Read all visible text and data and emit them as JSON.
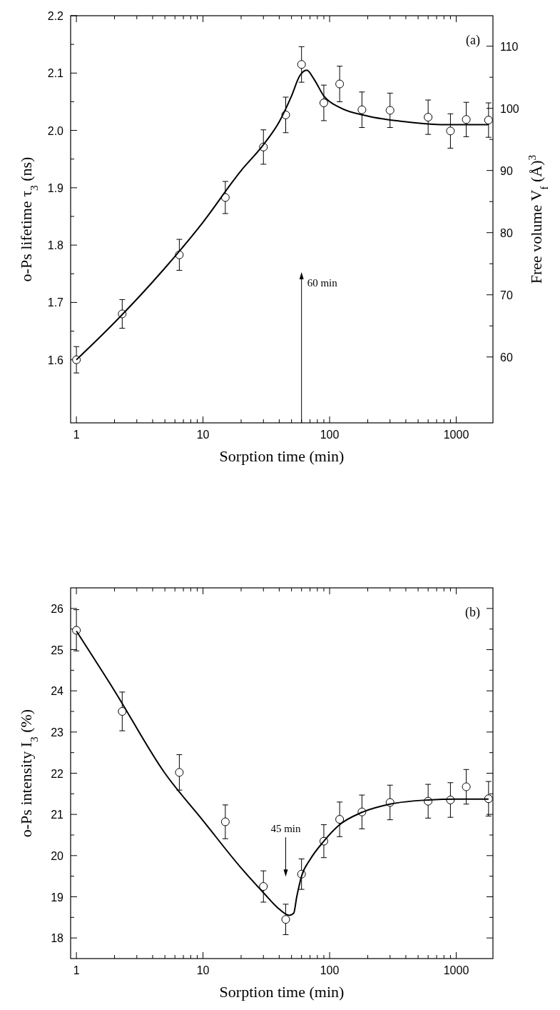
{
  "chart_data": [
    {
      "type": "scatter",
      "xlabel": "Sorption time (min)",
      "ylabel": "o-Ps lifetime τ$_{3}$ (ns)",
      "y2label": "Free volume V$_{f}$ (Å)$^{3}$",
      "log": "x",
      "xlim": [
        0.9,
        1950
      ],
      "ylim": [
        1.49,
        2.2
      ],
      "y2lim": [
        49.4,
        114.9
      ],
      "xticks": [
        1,
        {
          "value": 2,
          "label": null
        },
        {
          "value": 3,
          "label": null
        },
        {
          "value": 4,
          "label": null
        },
        {
          "value": 5,
          "label": null
        },
        {
          "value": 6,
          "label": null
        },
        {
          "value": 7,
          "label": null
        },
        {
          "value": 8,
          "label": null
        },
        {
          "value": 9,
          "label": null
        },
        10,
        {
          "value": 20,
          "label": null
        },
        {
          "value": 30,
          "label": null
        },
        {
          "value": 40,
          "label": null
        },
        {
          "value": 50,
          "label": null
        },
        {
          "value": 60,
          "label": null
        },
        {
          "value": 70,
          "label": null
        },
        {
          "value": 80,
          "label": null
        },
        {
          "value": 90,
          "label": null
        },
        100,
        {
          "value": 200,
          "label": null
        },
        {
          "value": 300,
          "label": null
        },
        {
          "value": 400,
          "label": null
        },
        {
          "value": 500,
          "label": null
        },
        {
          "value": 600,
          "label": null
        },
        {
          "value": 700,
          "label": null
        },
        {
          "value": 800,
          "label": null
        },
        {
          "value": 900,
          "label": null
        },
        1000
      ],
      "yticks": [
        {
          "value": 1.6,
          "label": "1.6"
        },
        {
          "value": 1.65,
          "label": null
        },
        {
          "value": 1.7,
          "label": "1.7"
        },
        {
          "value": 1.75,
          "label": null
        },
        {
          "value": 1.8,
          "label": "1.8"
        },
        {
          "value": 1.85,
          "label": null
        },
        {
          "value": 1.9,
          "label": "1.9"
        },
        {
          "value": 1.95,
          "label": null
        },
        {
          "value": 2.0,
          "label": "2.0"
        },
        {
          "value": 2.05,
          "label": null
        },
        {
          "value": 2.1,
          "label": "2.1"
        },
        {
          "value": 2.15,
          "label": null
        },
        {
          "value": 2.2,
          "label": "2.2"
        }
      ],
      "y2ticks": [
        60,
        {
          "value": 65,
          "label": null
        },
        70,
        {
          "value": 75,
          "label": null
        },
        80,
        {
          "value": 85,
          "label": null
        },
        90,
        {
          "value": 95,
          "label": null
        },
        100,
        {
          "value": 105,
          "label": null
        },
        110
      ],
      "annotations": [
        "(a)"
      ],
      "ref_lines": [
        {
          "axis": "x",
          "value": 60,
          "label": "60 min"
        }
      ],
      "series": [
        {
          "type": "scatter",
          "marker": "circle",
          "color": "#000000",
          "x": [
            1,
            2.3,
            6.5,
            15,
            30,
            45,
            60,
            90,
            120,
            180,
            300,
            600,
            900,
            1200,
            1800
          ],
          "values": [
            1.6,
            1.68,
            1.783,
            1.883,
            1.971,
            2.027,
            2.115,
            2.048,
            2.081,
            2.036,
            2.035,
            2.023,
            1.999,
            2.019,
            2.018
          ],
          "errors": [
            0.023,
            0.025,
            0.027,
            0.028,
            0.03,
            0.031,
            0.031,
            0.031,
            0.031,
            0.031,
            0.03,
            0.03,
            0.03,
            0.03,
            0.03
          ]
        },
        {
          "type": "line",
          "marker": "none",
          "color": "#000000",
          "x": [
            1,
            2,
            5,
            10,
            20,
            30,
            40,
            50,
            58,
            66,
            75,
            90,
            120,
            200,
            400,
            800,
            1800
          ],
          "values": [
            1.6,
            1.665,
            1.76,
            1.84,
            1.93,
            1.975,
            2.015,
            2.06,
            2.095,
            2.105,
            2.09,
            2.06,
            2.04,
            2.025,
            2.015,
            2.01,
            2.01
          ]
        }
      ]
    },
    {
      "type": "scatter",
      "xlabel": "Sorption time (min)",
      "ylabel": "o-Ps intensity I$_{3}$ (%)",
      "log": "x",
      "xlim": [
        0.9,
        1950
      ],
      "ylim": [
        17.5,
        26.5
      ],
      "xticks": [
        1,
        {
          "value": 2,
          "label": null
        },
        {
          "value": 3,
          "label": null
        },
        {
          "value": 4,
          "label": null
        },
        {
          "value": 5,
          "label": null
        },
        {
          "value": 6,
          "label": null
        },
        {
          "value": 7,
          "label": null
        },
        {
          "value": 8,
          "label": null
        },
        {
          "value": 9,
          "label": null
        },
        10,
        {
          "value": 20,
          "label": null
        },
        {
          "value": 30,
          "label": null
        },
        {
          "value": 40,
          "label": null
        },
        {
          "value": 50,
          "label": null
        },
        {
          "value": 60,
          "label": null
        },
        {
          "value": 70,
          "label": null
        },
        {
          "value": 80,
          "label": null
        },
        {
          "value": 90,
          "label": null
        },
        100,
        {
          "value": 200,
          "label": null
        },
        {
          "value": 300,
          "label": null
        },
        {
          "value": 400,
          "label": null
        },
        {
          "value": 500,
          "label": null
        },
        {
          "value": 600,
          "label": null
        },
        {
          "value": 700,
          "label": null
        },
        {
          "value": 800,
          "label": null
        },
        {
          "value": 900,
          "label": null
        },
        1000
      ],
      "yticks": [
        18,
        {
          "value": 18.5,
          "label": null
        },
        19,
        {
          "value": 19.5,
          "label": null
        },
        20,
        {
          "value": 20.5,
          "label": null
        },
        21,
        {
          "value": 21.5,
          "label": null
        },
        22,
        {
          "value": 22.5,
          "label": null
        },
        23,
        {
          "value": 23.5,
          "label": null
        },
        24,
        {
          "value": 24.5,
          "label": null
        },
        25,
        {
          "value": 25.5,
          "label": null
        },
        26
      ],
      "annotations": [
        "(b)"
      ],
      "ref_lines": [
        {
          "axis": "x",
          "value": 45,
          "label": "45 min"
        }
      ],
      "series": [
        {
          "type": "scatter",
          "marker": "circle",
          "color": "#000000",
          "x": [
            1,
            2.3,
            6.5,
            15,
            30,
            45,
            60,
            90,
            120,
            180,
            300,
            600,
            900,
            1200,
            1800
          ],
          "values": [
            25.47,
            23.5,
            22.02,
            20.82,
            19.25,
            18.45,
            19.55,
            20.35,
            20.88,
            21.06,
            21.29,
            21.32,
            21.35,
            21.67,
            21.38
          ],
          "errors": [
            0.5,
            0.47,
            0.43,
            0.41,
            0.38,
            0.37,
            0.37,
            0.4,
            0.42,
            0.41,
            0.42,
            0.41,
            0.42,
            0.42,
            0.42
          ]
        },
        {
          "type": "line",
          "marker": "none",
          "color": "#000000",
          "x": [
            1,
            2,
            5,
            10,
            20,
            30,
            40,
            48,
            52,
            55,
            60,
            70,
            90,
            120,
            180,
            300,
            600,
            1000,
            1800
          ],
          "values": [
            25.45,
            24.0,
            22.0,
            20.85,
            19.7,
            19.1,
            18.7,
            18.55,
            18.6,
            19.0,
            19.5,
            19.9,
            20.35,
            20.75,
            21.05,
            21.25,
            21.35,
            21.37,
            21.37
          ]
        }
      ]
    }
  ]
}
